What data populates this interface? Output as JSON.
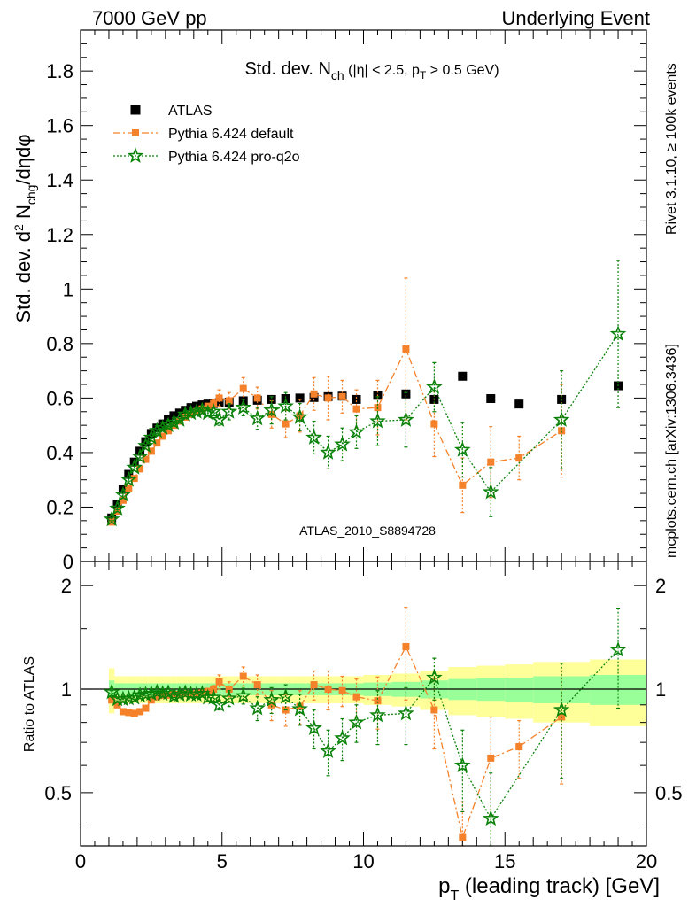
{
  "header": {
    "energy_label": "7000 GeV pp",
    "process_label": "Underlying Event"
  },
  "side_labels": {
    "rivet": "Rivet 3.1.10, ≥ 100k events",
    "mcplots": "mcplots.cern.ch [arXiv:1306.3436]"
  },
  "watermark": "ATLAS_2010_S8894728",
  "colors": {
    "atlas": "#000000",
    "pythia_default": "#f5822a",
    "pythia_proq2o": "#0a820a",
    "band_yellow": "#ffff99",
    "band_green": "#99ff99"
  },
  "chart_data": [
    {
      "type": "scatter",
      "panel": "main",
      "title": "Std. dev. N_ch (|η| < 2.5, p_T > 0.5 GeV)",
      "xlabel": "p_T (leading track) [GeV]",
      "ylabel": "Std. dev. d² N_chg/dηdφ",
      "xlim": [
        0,
        20
      ],
      "ylim": [
        0,
        1.95
      ],
      "x_ticks": [
        0,
        5,
        10,
        15,
        20
      ],
      "y_ticks": [
        0,
        0.2,
        0.4,
        0.6,
        0.8,
        1,
        1.2,
        1.4,
        1.6,
        1.8
      ],
      "legend_position": "top-left",
      "series": [
        {
          "name": "ATLAS",
          "marker": "square",
          "x": [
            1.1,
            1.3,
            1.5,
            1.7,
            1.9,
            2.1,
            2.3,
            2.5,
            2.7,
            2.9,
            3.1,
            3.3,
            3.5,
            3.7,
            3.9,
            4.1,
            4.3,
            4.5,
            4.7,
            4.9,
            5.25,
            5.75,
            6.25,
            6.75,
            7.25,
            7.75,
            8.25,
            8.75,
            9.25,
            9.75,
            10.5,
            11.5,
            12.5,
            13.5,
            14.5,
            15.5,
            17.0,
            19.0
          ],
          "y": [
            0.16,
            0.21,
            0.265,
            0.32,
            0.365,
            0.405,
            0.44,
            0.47,
            0.49,
            0.505,
            0.52,
            0.535,
            0.545,
            0.555,
            0.565,
            0.57,
            0.575,
            0.578,
            0.58,
            0.583,
            0.585,
            0.59,
            0.592,
            0.595,
            0.598,
            0.6,
            0.602,
            0.605,
            0.607,
            0.595,
            0.61,
            0.615,
            0.595,
            0.68,
            0.598,
            0.578,
            0.595,
            0.645
          ]
        },
        {
          "name": "Pythia 6.424 default",
          "marker": "filled-square",
          "x": [
            1.1,
            1.3,
            1.5,
            1.7,
            1.9,
            2.1,
            2.3,
            2.5,
            2.7,
            2.9,
            3.1,
            3.3,
            3.5,
            3.7,
            3.9,
            4.1,
            4.3,
            4.5,
            4.7,
            4.9,
            5.25,
            5.75,
            6.25,
            6.75,
            7.25,
            7.75,
            8.25,
            8.75,
            9.25,
            9.75,
            10.5,
            11.5,
            12.5,
            13.5,
            14.5,
            15.5,
            17.0
          ],
          "y": [
            0.145,
            0.185,
            0.225,
            0.27,
            0.305,
            0.34,
            0.375,
            0.405,
            0.435,
            0.46,
            0.48,
            0.5,
            0.515,
            0.53,
            0.54,
            0.55,
            0.56,
            0.57,
            0.58,
            0.6,
            0.59,
            0.635,
            0.6,
            0.54,
            0.505,
            0.535,
            0.615,
            0.6,
            0.605,
            0.56,
            0.565,
            0.78,
            0.505,
            0.28,
            0.365,
            0.38,
            0.48
          ],
          "yerr": [
            0.005,
            0.005,
            0.005,
            0.005,
            0.005,
            0.005,
            0.005,
            0.005,
            0.005,
            0.005,
            0.005,
            0.005,
            0.005,
            0.005,
            0.005,
            0.01,
            0.01,
            0.01,
            0.015,
            0.03,
            0.03,
            0.04,
            0.04,
            0.05,
            0.05,
            0.06,
            0.06,
            0.08,
            0.06,
            0.07,
            0.1,
            0.26,
            0.12,
            0.1,
            0.13,
            0.08,
            0.17
          ]
        },
        {
          "name": "Pythia 6.424 pro-q2o",
          "marker": "star",
          "x": [
            1.1,
            1.3,
            1.5,
            1.7,
            1.9,
            2.1,
            2.3,
            2.5,
            2.7,
            2.9,
            3.1,
            3.3,
            3.5,
            3.7,
            3.9,
            4.1,
            4.3,
            4.5,
            4.7,
            4.9,
            5.25,
            5.75,
            6.25,
            6.75,
            7.25,
            7.75,
            8.25,
            8.75,
            9.25,
            9.75,
            10.5,
            11.5,
            12.5,
            13.5,
            14.5,
            17.0,
            19.0
          ],
          "y": [
            0.155,
            0.195,
            0.245,
            0.3,
            0.345,
            0.385,
            0.425,
            0.455,
            0.48,
            0.49,
            0.5,
            0.51,
            0.52,
            0.54,
            0.545,
            0.55,
            0.555,
            0.545,
            0.55,
            0.52,
            0.55,
            0.565,
            0.525,
            0.555,
            0.57,
            0.53,
            0.455,
            0.4,
            0.43,
            0.475,
            0.515,
            0.52,
            0.64,
            0.41,
            0.255,
            0.52,
            0.835
          ],
          "yerr": [
            0.005,
            0.005,
            0.005,
            0.005,
            0.005,
            0.005,
            0.005,
            0.005,
            0.005,
            0.005,
            0.005,
            0.005,
            0.005,
            0.005,
            0.01,
            0.01,
            0.01,
            0.01,
            0.015,
            0.02,
            0.03,
            0.03,
            0.04,
            0.05,
            0.05,
            0.05,
            0.06,
            0.06,
            0.06,
            0.06,
            0.09,
            0.1,
            0.09,
            0.1,
            0.09,
            0.18,
            0.27
          ]
        }
      ]
    },
    {
      "type": "scatter",
      "panel": "ratio",
      "xlabel": "p_T (leading track) [GeV]",
      "ylabel": "Ratio to ATLAS",
      "xlim": [
        0,
        20
      ],
      "ylim": [
        0.35,
        2.35
      ],
      "y_scale": "log",
      "y_ticks": [
        0.5,
        1,
        2
      ],
      "bands": {
        "x_edges": [
          1.0,
          1.2,
          1.4,
          1.6,
          1.8,
          2.0,
          2.2,
          2.4,
          2.6,
          2.8,
          3.0,
          3.2,
          3.4,
          3.6,
          3.8,
          4.0,
          4.2,
          4.4,
          4.6,
          4.8,
          5.0,
          5.5,
          6.0,
          6.5,
          7.0,
          7.5,
          8.0,
          8.5,
          9.0,
          9.5,
          10.0,
          11.0,
          12.0,
          13.0,
          14.0,
          15.0,
          16.0,
          18.0,
          20.0
        ],
        "yellow_half_width": [
          0.15,
          0.09,
          0.09,
          0.09,
          0.09,
          0.09,
          0.09,
          0.09,
          0.09,
          0.09,
          0.09,
          0.09,
          0.09,
          0.09,
          0.09,
          0.09,
          0.09,
          0.09,
          0.09,
          0.09,
          0.09,
          0.09,
          0.09,
          0.09,
          0.09,
          0.09,
          0.09,
          0.09,
          0.09,
          0.09,
          0.1,
          0.11,
          0.13,
          0.16,
          0.17,
          0.18,
          0.2,
          0.22
        ],
        "green_half_width": [
          0.06,
          0.04,
          0.04,
          0.04,
          0.04,
          0.04,
          0.04,
          0.04,
          0.04,
          0.04,
          0.04,
          0.04,
          0.04,
          0.04,
          0.04,
          0.04,
          0.04,
          0.04,
          0.04,
          0.04,
          0.04,
          0.04,
          0.04,
          0.04,
          0.04,
          0.04,
          0.04,
          0.04,
          0.04,
          0.04,
          0.045,
          0.05,
          0.06,
          0.07,
          0.075,
          0.08,
          0.09,
          0.1
        ]
      },
      "series": [
        {
          "name": "Pythia 6.424 default",
          "marker": "filled-square",
          "x": [
            1.1,
            1.3,
            1.5,
            1.7,
            1.9,
            2.1,
            2.3,
            2.5,
            2.7,
            2.9,
            3.1,
            3.3,
            3.5,
            3.7,
            3.9,
            4.1,
            4.3,
            4.5,
            4.7,
            4.9,
            5.25,
            5.75,
            6.25,
            6.75,
            7.25,
            7.75,
            8.25,
            8.75,
            9.25,
            9.75,
            10.5,
            11.5,
            12.5,
            13.5,
            14.5,
            15.5,
            17.0
          ],
          "y": [
            0.93,
            0.9,
            0.86,
            0.855,
            0.85,
            0.86,
            0.88,
            0.93,
            0.95,
            0.96,
            0.96,
            0.965,
            0.965,
            0.97,
            0.965,
            0.97,
            0.975,
            0.985,
            1.0,
            1.05,
            1.0,
            1.09,
            1.03,
            0.9,
            0.87,
            0.89,
            1.03,
            1.0,
            0.99,
            0.95,
            0.925,
            1.33,
            0.87,
            0.37,
            0.63,
            0.68,
            0.83
          ],
          "yerr": [
            0.01,
            0.01,
            0.01,
            0.01,
            0.01,
            0.01,
            0.01,
            0.01,
            0.01,
            0.01,
            0.01,
            0.01,
            0.01,
            0.01,
            0.01,
            0.015,
            0.015,
            0.02,
            0.025,
            0.05,
            0.05,
            0.07,
            0.07,
            0.09,
            0.09,
            0.1,
            0.1,
            0.13,
            0.1,
            0.12,
            0.16,
            0.4,
            0.2,
            0.1,
            0.2,
            0.13,
            0.3
          ]
        },
        {
          "name": "Pythia 6.424 pro-q2o",
          "marker": "star",
          "x": [
            1.1,
            1.3,
            1.5,
            1.7,
            1.9,
            2.1,
            2.3,
            2.5,
            2.7,
            2.9,
            3.1,
            3.3,
            3.5,
            3.7,
            3.9,
            4.1,
            4.3,
            4.5,
            4.7,
            4.9,
            5.25,
            5.75,
            6.25,
            6.75,
            7.25,
            7.75,
            8.25,
            8.75,
            9.25,
            9.75,
            10.5,
            11.5,
            12.5,
            13.5,
            14.5,
            17.0,
            19.0
          ],
          "y": [
            0.98,
            0.935,
            0.935,
            0.94,
            0.945,
            0.96,
            0.965,
            0.97,
            0.98,
            0.97,
            0.975,
            0.955,
            0.965,
            0.975,
            0.965,
            0.965,
            0.97,
            0.945,
            0.945,
            0.9,
            0.94,
            0.955,
            0.88,
            0.93,
            0.95,
            0.875,
            0.77,
            0.66,
            0.72,
            0.8,
            0.84,
            0.85,
            1.08,
            0.6,
            0.42,
            0.87,
            1.3
          ],
          "yerr": [
            0.01,
            0.01,
            0.01,
            0.01,
            0.01,
            0.01,
            0.01,
            0.01,
            0.01,
            0.01,
            0.01,
            0.01,
            0.01,
            0.01,
            0.015,
            0.015,
            0.015,
            0.02,
            0.025,
            0.03,
            0.05,
            0.05,
            0.07,
            0.08,
            0.08,
            0.09,
            0.1,
            0.1,
            0.1,
            0.1,
            0.15,
            0.16,
            0.15,
            0.16,
            0.15,
            0.32,
            0.42
          ]
        }
      ]
    }
  ]
}
